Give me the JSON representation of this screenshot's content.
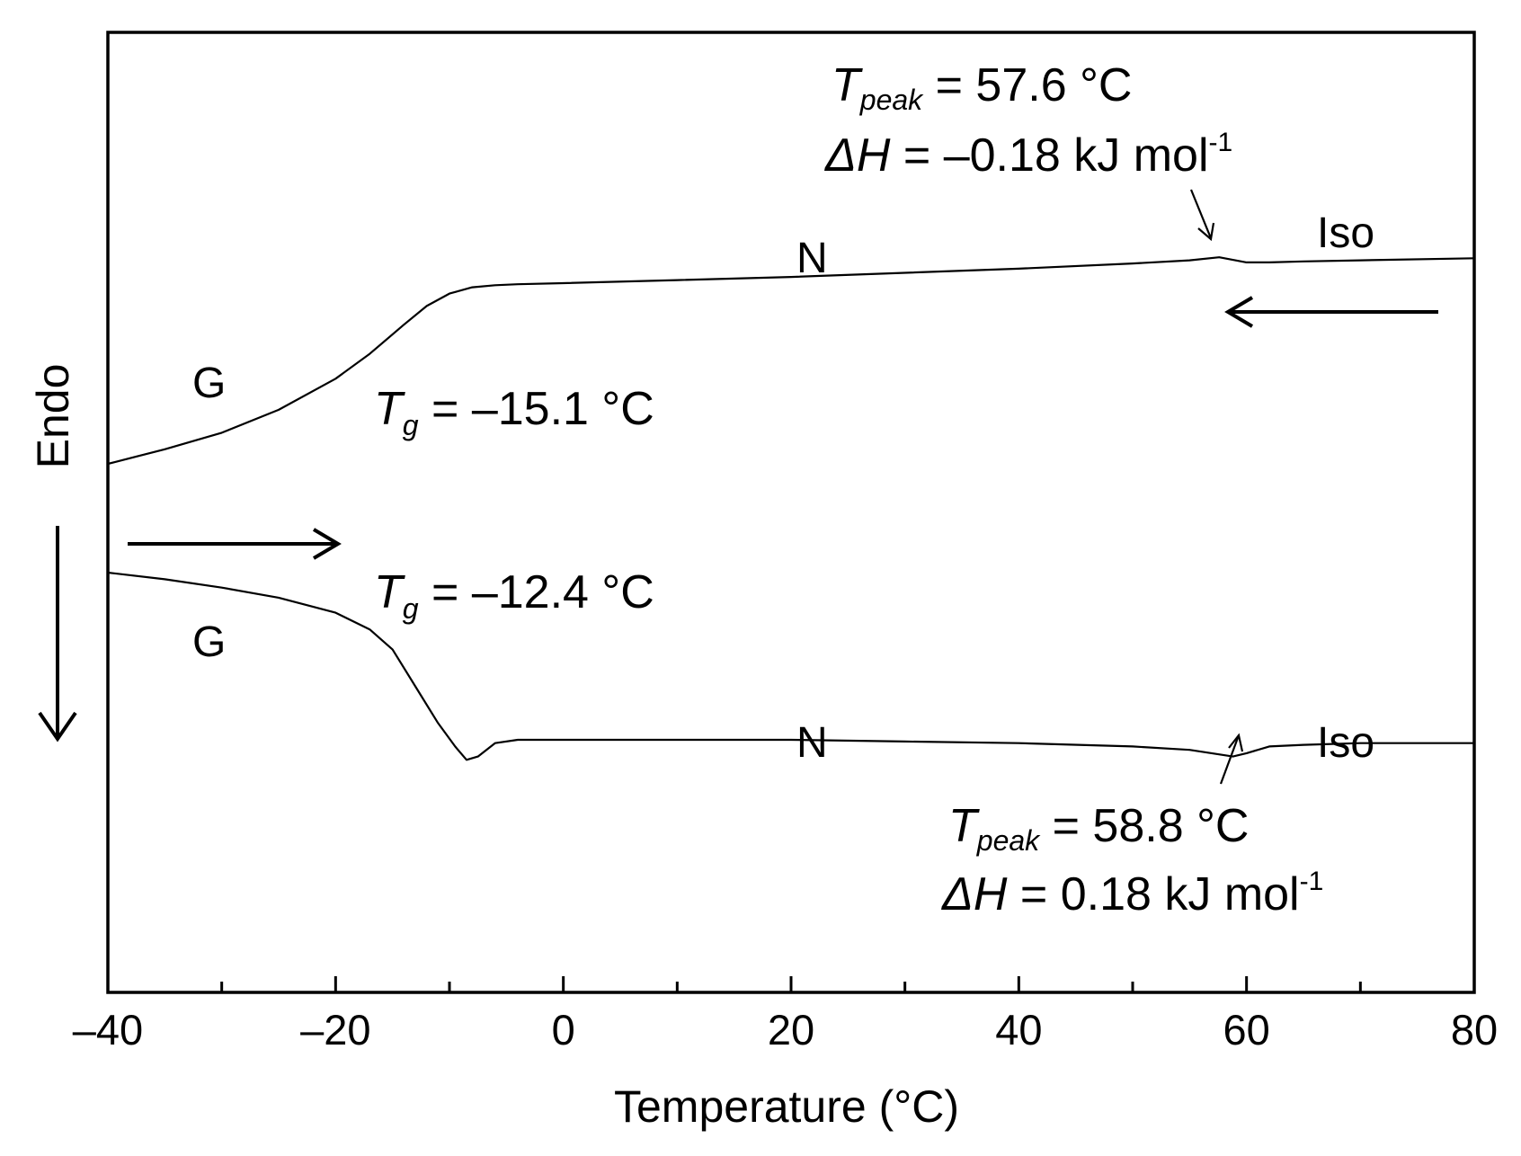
{
  "chart_data": {
    "type": "line",
    "title": "",
    "xlabel": "Temperature (°C)",
    "ylabel": "Endo",
    "xlim": [
      -40,
      80
    ],
    "x_ticks_major": [
      -40,
      -20,
      0,
      20,
      40,
      60,
      80
    ],
    "x_ticks_major_labels": [
      "–40",
      "–20",
      "0",
      "20",
      "40",
      "60",
      "80"
    ],
    "x_ticks_minor": [
      -30,
      -10,
      10,
      30,
      50,
      70
    ],
    "y_tick_labels": false,
    "grid": false,
    "legend": "none",
    "series": [
      {
        "process": "cooling",
        "x": [
          -40,
          -35,
          -30,
          -25,
          -20,
          -17,
          -14,
          -12,
          -10,
          -8,
          -6,
          -4,
          0,
          10,
          20,
          30,
          40,
          50,
          55,
          57.6,
          60,
          62,
          65,
          70,
          80
        ],
        "y": [
          0,
          0.07,
          0.15,
          0.26,
          0.41,
          0.53,
          0.67,
          0.76,
          0.82,
          0.85,
          0.86,
          0.865,
          0.87,
          0.885,
          0.9,
          0.92,
          0.94,
          0.965,
          0.98,
          0.995,
          0.97,
          0.97,
          0.975,
          0.98,
          0.99
        ]
      },
      {
        "process": "heating",
        "x": [
          -40,
          -35,
          -30,
          -25,
          -20,
          -17,
          -15,
          -13,
          -11,
          -9.5,
          -8.5,
          -7.5,
          -6,
          -4,
          0,
          10,
          20,
          30,
          40,
          50,
          55,
          58.8,
          60,
          62,
          65,
          70,
          80
        ],
        "y": [
          0,
          -0.02,
          -0.045,
          -0.075,
          -0.12,
          -0.17,
          -0.23,
          -0.34,
          -0.45,
          -0.52,
          -0.56,
          -0.55,
          -0.51,
          -0.5,
          -0.5,
          -0.5,
          -0.5,
          -0.505,
          -0.51,
          -0.52,
          -0.53,
          -0.55,
          -0.54,
          -0.52,
          -0.515,
          -0.51,
          -0.51
        ]
      }
    ],
    "annotations": {
      "cooling": {
        "tpeak_symbol": "T",
        "tpeak_sub": "peak",
        "tpeak_value": " = 57.6 °C",
        "dh_symbol": "ΔH",
        "dh_value": " = –0.18 kJ mol",
        "dh_exp": "-1",
        "tg_symbol": "T",
        "tg_sub": "g",
        "tg_value": " = –15.1 °C",
        "phase_low": "G",
        "phase_mid": "N",
        "phase_high": "Iso"
      },
      "heating": {
        "tpeak_symbol": "T",
        "tpeak_sub": "peak",
        "tpeak_value": " = 58.8 °C",
        "dh_symbol": "ΔH",
        "dh_value": " = 0.18 kJ mol",
        "dh_exp": "-1",
        "tg_symbol": "T",
        "tg_sub": "g",
        "tg_value": " = –12.4 °C",
        "phase_low": "G",
        "phase_mid": "N",
        "phase_high": "Iso"
      }
    }
  }
}
